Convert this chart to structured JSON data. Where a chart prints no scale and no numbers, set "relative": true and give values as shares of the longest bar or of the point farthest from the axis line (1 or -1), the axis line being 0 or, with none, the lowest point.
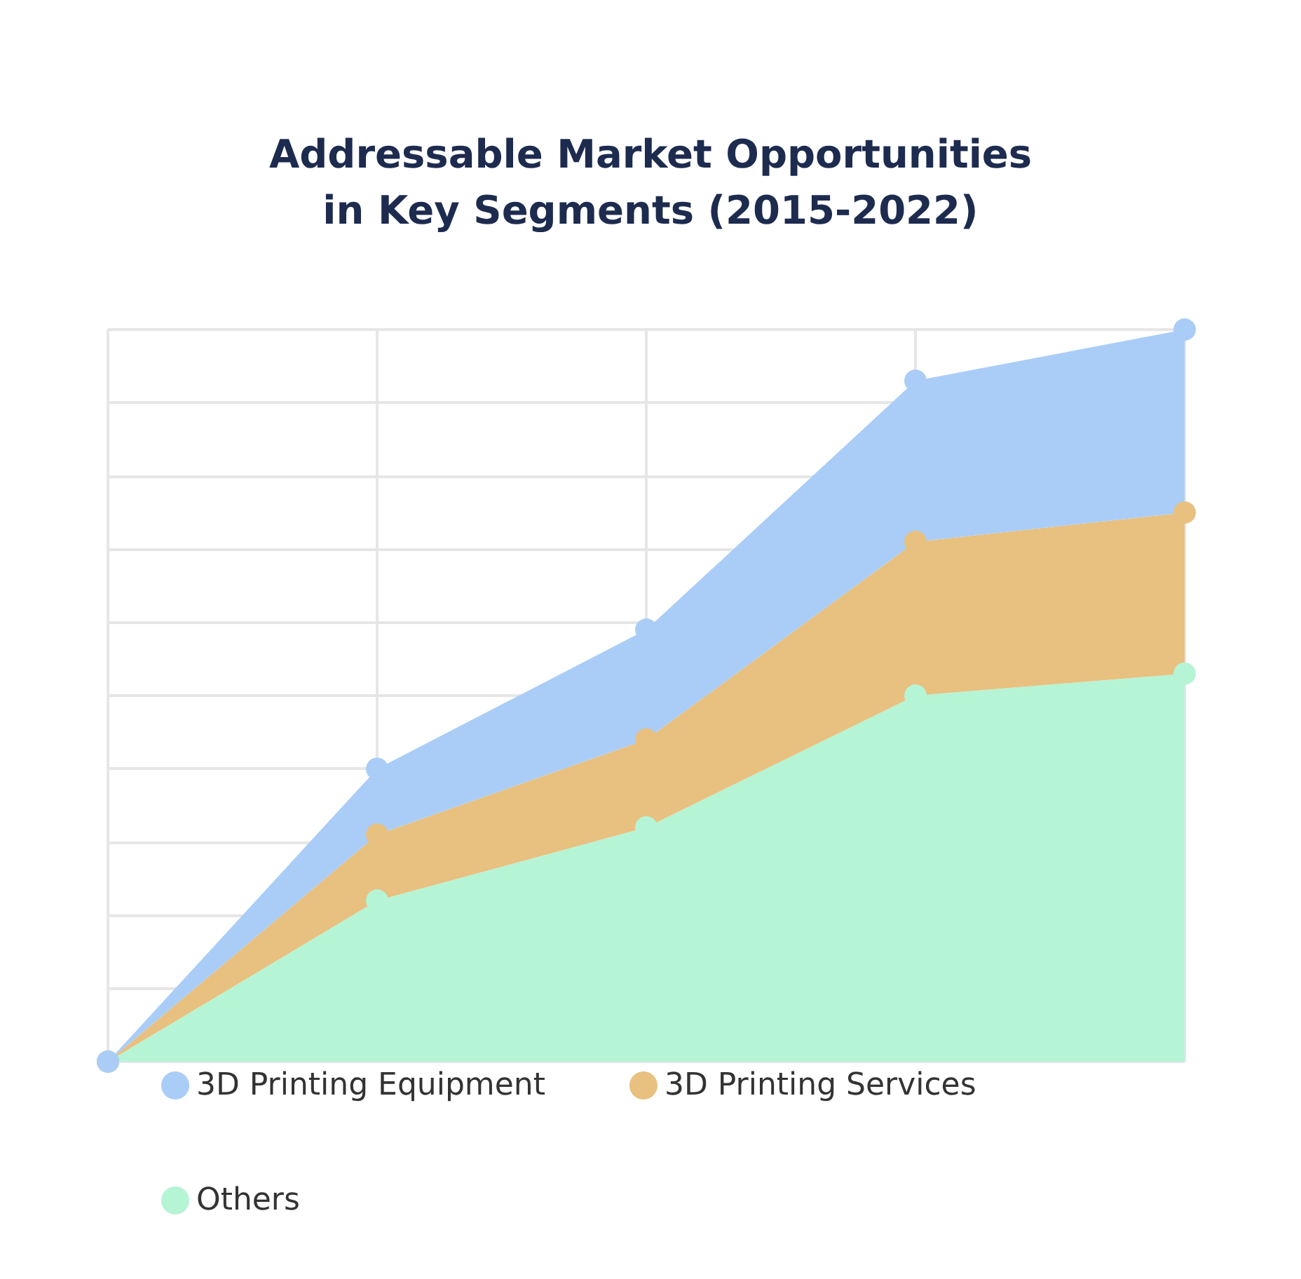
{
  "chart_data": {
    "type": "area",
    "title": "Addressable Market Opportunities\nin Key Segments (2015-2022)",
    "categories": [
      null,
      null,
      null,
      null,
      null
    ],
    "relative": true,
    "stacked": true,
    "grid": true,
    "legend": "bottom",
    "marker": "circle",
    "series": [
      {
        "name": "Others",
        "color": "#b6f4d6",
        "values": [
          0,
          0.22,
          0.32,
          0.5,
          0.53
        ]
      },
      {
        "name": "3D Printing Services",
        "color": "#e8c07f",
        "values": [
          0,
          0.09,
          0.12,
          0.21,
          0.22
        ]
      },
      {
        "name": "3D Printing Equipment",
        "color": "#a9cdf7",
        "values": [
          0,
          0.09,
          0.15,
          0.22,
          0.25
        ]
      }
    ]
  }
}
